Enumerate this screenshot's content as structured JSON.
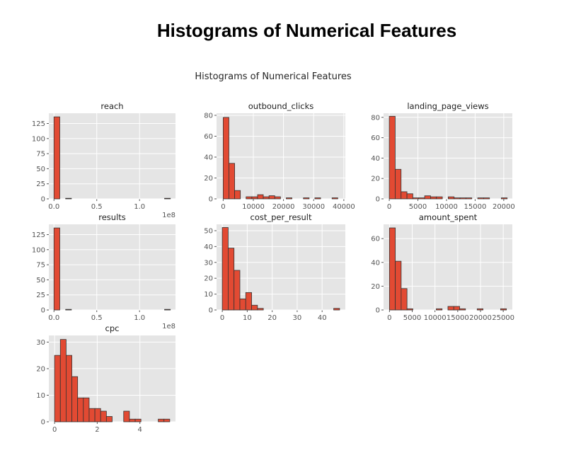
{
  "page_title": "Histograms of Numerical Features",
  "figure_title": "Histograms of Numerical Features",
  "colors": {
    "bar": "#e24a33",
    "edge": "#333333",
    "panel": "#e5e5e5",
    "grid": "#ffffff",
    "tick": "#555555"
  },
  "chart_data": [
    {
      "type": "bar",
      "title": "reach",
      "xlim": [
        -0.06,
        1.42
      ],
      "ylim": [
        0,
        142
      ],
      "xticks": [
        {
          "v": 0,
          "label": "0.0"
        },
        {
          "v": 0.5,
          "label": "0.5"
        },
        {
          "v": 1.0,
          "label": "1.0"
        }
      ],
      "yticks": [
        {
          "v": 0,
          "label": "0"
        },
        {
          "v": 25,
          "label": "25"
        },
        {
          "v": 50,
          "label": "50"
        },
        {
          "v": 75,
          "label": "75"
        },
        {
          "v": 100,
          "label": "100"
        },
        {
          "v": 125,
          "label": "125"
        }
      ],
      "offset_label": "1e8",
      "bins": [
        {
          "x0": 0.0,
          "x1": 0.068,
          "count": 136
        },
        {
          "x0": 0.136,
          "x1": 0.204,
          "count": 1
        },
        {
          "x0": 1.292,
          "x1": 1.36,
          "count": 1
        }
      ]
    },
    {
      "type": "bar",
      "title": "outbound_clicks",
      "xlim": [
        -2200,
        40500
      ],
      "ylim": [
        0,
        82
      ],
      "xticks": [
        {
          "v": 0,
          "label": "0"
        },
        {
          "v": 10000,
          "label": "10000"
        },
        {
          "v": 20000,
          "label": "20000"
        },
        {
          "v": 30000,
          "label": "30000"
        },
        {
          "v": 40000,
          "label": "40000"
        }
      ],
      "yticks": [
        {
          "v": 0,
          "label": "0"
        },
        {
          "v": 20,
          "label": "20"
        },
        {
          "v": 40,
          "label": "40"
        },
        {
          "v": 60,
          "label": "60"
        },
        {
          "v": 80,
          "label": "80"
        }
      ],
      "offset_label": "",
      "bins": [
        {
          "x0": 0,
          "x1": 1900,
          "count": 78
        },
        {
          "x0": 1900,
          "x1": 3800,
          "count": 34
        },
        {
          "x0": 3800,
          "x1": 5700,
          "count": 8
        },
        {
          "x0": 7600,
          "x1": 9500,
          "count": 2
        },
        {
          "x0": 9500,
          "x1": 11400,
          "count": 2
        },
        {
          "x0": 11400,
          "x1": 13300,
          "count": 4
        },
        {
          "x0": 13300,
          "x1": 15200,
          "count": 2
        },
        {
          "x0": 15200,
          "x1": 17100,
          "count": 3
        },
        {
          "x0": 17100,
          "x1": 19000,
          "count": 2
        },
        {
          "x0": 20900,
          "x1": 22800,
          "count": 1
        },
        {
          "x0": 26600,
          "x1": 28500,
          "count": 1
        },
        {
          "x0": 30400,
          "x1": 32300,
          "count": 1
        },
        {
          "x0": 36100,
          "x1": 38000,
          "count": 1
        }
      ]
    },
    {
      "type": "bar",
      "title": "landing_page_views",
      "xlim": [
        -1000,
        21500
      ],
      "ylim": [
        0,
        84
      ],
      "xticks": [
        {
          "v": 0,
          "label": "0"
        },
        {
          "v": 5000,
          "label": "5000"
        },
        {
          "v": 10000,
          "label": "10000"
        },
        {
          "v": 15000,
          "label": "15000"
        },
        {
          "v": 20000,
          "label": "20000"
        }
      ],
      "yticks": [
        {
          "v": 0,
          "label": "0"
        },
        {
          "v": 20,
          "label": "20"
        },
        {
          "v": 40,
          "label": "40"
        },
        {
          "v": 60,
          "label": "60"
        },
        {
          "v": 80,
          "label": "80"
        }
      ],
      "offset_label": "",
      "bins": [
        {
          "x0": 0,
          "x1": 1030,
          "count": 81
        },
        {
          "x0": 1030,
          "x1": 2060,
          "count": 29
        },
        {
          "x0": 2060,
          "x1": 3090,
          "count": 7
        },
        {
          "x0": 3090,
          "x1": 4120,
          "count": 5
        },
        {
          "x0": 4120,
          "x1": 5150,
          "count": 1
        },
        {
          "x0": 5150,
          "x1": 6180,
          "count": 1
        },
        {
          "x0": 6180,
          "x1": 7210,
          "count": 3
        },
        {
          "x0": 7210,
          "x1": 8240,
          "count": 2
        },
        {
          "x0": 8240,
          "x1": 9270,
          "count": 2
        },
        {
          "x0": 10300,
          "x1": 11330,
          "count": 2
        },
        {
          "x0": 11330,
          "x1": 12360,
          "count": 1
        },
        {
          "x0": 12360,
          "x1": 13390,
          "count": 1
        },
        {
          "x0": 13390,
          "x1": 14420,
          "count": 1
        },
        {
          "x0": 15450,
          "x1": 16480,
          "count": 1
        },
        {
          "x0": 16480,
          "x1": 17510,
          "count": 1
        },
        {
          "x0": 19570,
          "x1": 20600,
          "count": 1
        }
      ]
    },
    {
      "type": "bar",
      "title": "results",
      "xlim": [
        -0.06,
        1.42
      ],
      "ylim": [
        0,
        142
      ],
      "xticks": [
        {
          "v": 0,
          "label": "0.0"
        },
        {
          "v": 0.5,
          "label": "0.5"
        },
        {
          "v": 1.0,
          "label": "1.0"
        }
      ],
      "yticks": [
        {
          "v": 0,
          "label": "0"
        },
        {
          "v": 25,
          "label": "25"
        },
        {
          "v": 50,
          "label": "50"
        },
        {
          "v": 75,
          "label": "75"
        },
        {
          "v": 100,
          "label": "100"
        },
        {
          "v": 125,
          "label": "125"
        }
      ],
      "offset_label": "1e8",
      "bins": [
        {
          "x0": 0.0,
          "x1": 0.068,
          "count": 136
        },
        {
          "x0": 0.136,
          "x1": 0.204,
          "count": 1
        },
        {
          "x0": 1.292,
          "x1": 1.36,
          "count": 1
        }
      ]
    },
    {
      "type": "bar",
      "title": "cost_per_result",
      "xlim": [
        -2.3,
        49.3
      ],
      "ylim": [
        0,
        54
      ],
      "xticks": [
        {
          "v": 0,
          "label": "0"
        },
        {
          "v": 10,
          "label": "10"
        },
        {
          "v": 20,
          "label": "20"
        },
        {
          "v": 30,
          "label": "30"
        },
        {
          "v": 40,
          "label": "40"
        }
      ],
      "yticks": [
        {
          "v": 0,
          "label": "0"
        },
        {
          "v": 10,
          "label": "10"
        },
        {
          "v": 20,
          "label": "20"
        },
        {
          "v": 30,
          "label": "30"
        },
        {
          "v": 40,
          "label": "40"
        },
        {
          "v": 50,
          "label": "50"
        }
      ],
      "offset_label": "",
      "bins": [
        {
          "x0": 0,
          "x1": 2.35,
          "count": 52
        },
        {
          "x0": 2.35,
          "x1": 4.7,
          "count": 39
        },
        {
          "x0": 4.7,
          "x1": 7.05,
          "count": 25
        },
        {
          "x0": 7.05,
          "x1": 9.4,
          "count": 7
        },
        {
          "x0": 9.4,
          "x1": 11.75,
          "count": 11
        },
        {
          "x0": 11.75,
          "x1": 14.1,
          "count": 3
        },
        {
          "x0": 14.1,
          "x1": 16.45,
          "count": 1
        },
        {
          "x0": 44.65,
          "x1": 47.0,
          "count": 1
        }
      ]
    },
    {
      "type": "bar",
      "title": "amount_spent",
      "xlim": [
        -1300,
        27000
      ],
      "ylim": [
        0,
        72
      ],
      "xticks": [
        {
          "v": 0,
          "label": "0"
        },
        {
          "v": 5000,
          "label": "5000"
        },
        {
          "v": 10000,
          "label": "10000"
        },
        {
          "v": 15000,
          "label": "15000"
        },
        {
          "v": 20000,
          "label": "20000"
        },
        {
          "v": 25000,
          "label": "25000"
        }
      ],
      "yticks": [
        {
          "v": 0,
          "label": "0"
        },
        {
          "v": 20,
          "label": "20"
        },
        {
          "v": 40,
          "label": "40"
        },
        {
          "v": 60,
          "label": "60"
        }
      ],
      "offset_label": "",
      "bins": [
        {
          "x0": 0,
          "x1": 1285,
          "count": 69
        },
        {
          "x0": 1285,
          "x1": 2570,
          "count": 41
        },
        {
          "x0": 2570,
          "x1": 3855,
          "count": 18
        },
        {
          "x0": 3855,
          "x1": 5140,
          "count": 1
        },
        {
          "x0": 10280,
          "x1": 11565,
          "count": 1
        },
        {
          "x0": 12850,
          "x1": 14135,
          "count": 3
        },
        {
          "x0": 14135,
          "x1": 15420,
          "count": 3
        },
        {
          "x0": 15420,
          "x1": 16705,
          "count": 1
        },
        {
          "x0": 19275,
          "x1": 20560,
          "count": 1
        },
        {
          "x0": 24415,
          "x1": 25700,
          "count": 1
        }
      ]
    },
    {
      "type": "bar",
      "title": "cpc",
      "xlim": [
        -0.27,
        5.67
      ],
      "ylim": [
        0,
        32.5
      ],
      "xticks": [
        {
          "v": 0,
          "label": "0"
        },
        {
          "v": 2,
          "label": "2"
        },
        {
          "v": 4,
          "label": "4"
        }
      ],
      "yticks": [
        {
          "v": 0,
          "label": "0"
        },
        {
          "v": 10,
          "label": "10"
        },
        {
          "v": 20,
          "label": "20"
        },
        {
          "v": 30,
          "label": "30"
        }
      ],
      "offset_label": "",
      "bins": [
        {
          "x0": 0.0,
          "x1": 0.27,
          "count": 25
        },
        {
          "x0": 0.27,
          "x1": 0.54,
          "count": 31
        },
        {
          "x0": 0.54,
          "x1": 0.81,
          "count": 25
        },
        {
          "x0": 0.81,
          "x1": 1.08,
          "count": 17
        },
        {
          "x0": 1.08,
          "x1": 1.35,
          "count": 9
        },
        {
          "x0": 1.35,
          "x1": 1.62,
          "count": 9
        },
        {
          "x0": 1.62,
          "x1": 1.89,
          "count": 5
        },
        {
          "x0": 1.89,
          "x1": 2.16,
          "count": 5
        },
        {
          "x0": 2.16,
          "x1": 2.43,
          "count": 4
        },
        {
          "x0": 2.43,
          "x1": 2.7,
          "count": 2
        },
        {
          "x0": 3.24,
          "x1": 3.51,
          "count": 4
        },
        {
          "x0": 3.51,
          "x1": 3.78,
          "count": 1
        },
        {
          "x0": 3.78,
          "x1": 4.05,
          "count": 1
        },
        {
          "x0": 4.86,
          "x1": 5.13,
          "count": 1
        },
        {
          "x0": 5.13,
          "x1": 5.4,
          "count": 1
        }
      ]
    }
  ]
}
